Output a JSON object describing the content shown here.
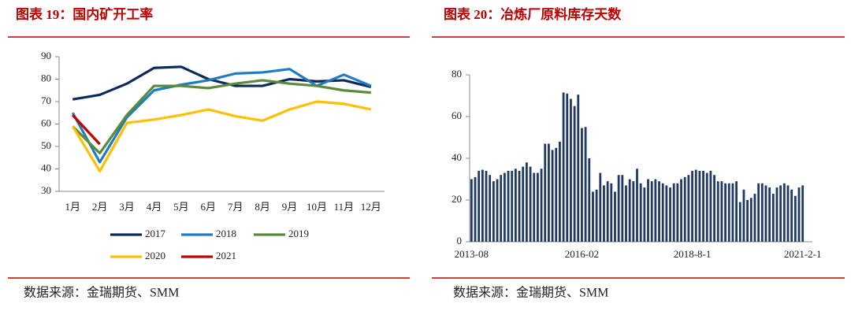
{
  "chart_data": [
    {
      "type": "line",
      "title": "图表 19：国内矿开工率",
      "source": "数据来源：金瑞期货、SMM",
      "categories": [
        "1月",
        "2月",
        "3月",
        "4月",
        "5月",
        "6月",
        "7月",
        "8月",
        "9月",
        "10月",
        "11月",
        "12月"
      ],
      "ylim": [
        30,
        90
      ],
      "yticks": [
        30,
        40,
        50,
        60,
        70,
        80,
        90
      ],
      "grid": false,
      "series": [
        {
          "name": "2017",
          "color": "#0e2a5c",
          "values": [
            71,
            73,
            78,
            85,
            85.5,
            80,
            77,
            77,
            80,
            79,
            79.5,
            76.5
          ]
        },
        {
          "name": "2018",
          "color": "#1f7cc4",
          "values": [
            65,
            43,
            63,
            75,
            77.5,
            79.5,
            82.5,
            83,
            84.5,
            77,
            82,
            77
          ]
        },
        {
          "name": "2019",
          "color": "#5b8a3a",
          "values": [
            59,
            47,
            64,
            77,
            77,
            76,
            78,
            79.5,
            78,
            77,
            75,
            74
          ]
        },
        {
          "name": "2020",
          "color": "#ffc000",
          "values": [
            59,
            39,
            60.5,
            62,
            64,
            66.5,
            63.5,
            61.5,
            66.5,
            70,
            69,
            66.5
          ]
        },
        {
          "name": "2021",
          "color": "#c00000",
          "values": [
            64,
            51,
            null,
            null,
            null,
            null,
            null,
            null,
            null,
            null,
            null,
            null
          ]
        }
      ]
    },
    {
      "type": "bar",
      "title": "图表 20：冶炼厂原料库存天数",
      "source": "数据来源：金瑞期货、SMM",
      "color": "#1f3864",
      "ylim": [
        0,
        80
      ],
      "yticks": [
        0,
        20,
        40,
        60,
        80
      ],
      "grid": false,
      "categories": [
        "2013-08",
        null,
        null,
        null,
        null,
        null,
        null,
        null,
        null,
        null,
        null,
        null,
        null,
        null,
        null,
        null,
        null,
        null,
        null,
        null,
        null,
        null,
        null,
        null,
        null,
        null,
        null,
        null,
        null,
        null,
        "2016-02",
        null,
        null,
        null,
        null,
        null,
        null,
        null,
        null,
        null,
        null,
        null,
        null,
        null,
        null,
        null,
        null,
        null,
        null,
        null,
        null,
        null,
        null,
        null,
        null,
        null,
        null,
        null,
        null,
        null,
        "2018-8-1",
        null,
        null,
        null,
        null,
        null,
        null,
        null,
        null,
        null,
        null,
        null,
        null,
        null,
        null,
        null,
        null,
        null,
        null,
        null,
        null,
        null,
        null,
        null,
        null,
        null,
        null,
        null,
        null,
        null,
        "2021-2-1"
      ],
      "values": [
        30,
        31,
        34,
        34.5,
        34,
        32,
        29,
        30,
        32,
        33,
        34,
        34,
        35,
        34,
        36,
        38,
        36,
        33,
        33,
        35,
        47,
        47,
        44,
        45,
        48,
        71.5,
        71,
        68.5,
        65,
        70.5,
        54.5,
        55,
        40,
        24,
        25,
        33,
        27,
        29,
        28,
        24,
        32,
        32,
        27,
        30,
        29,
        35,
        28,
        26,
        30,
        29,
        30,
        29,
        28,
        27,
        26,
        28,
        28,
        30,
        31,
        32,
        34,
        34.5,
        34,
        34,
        33,
        34,
        32,
        29,
        29,
        28,
        28,
        28,
        29,
        19,
        25,
        20,
        21,
        23,
        28,
        28,
        27,
        26,
        23,
        26,
        27,
        28,
        27,
        25,
        22,
        26,
        27
      ]
    }
  ]
}
